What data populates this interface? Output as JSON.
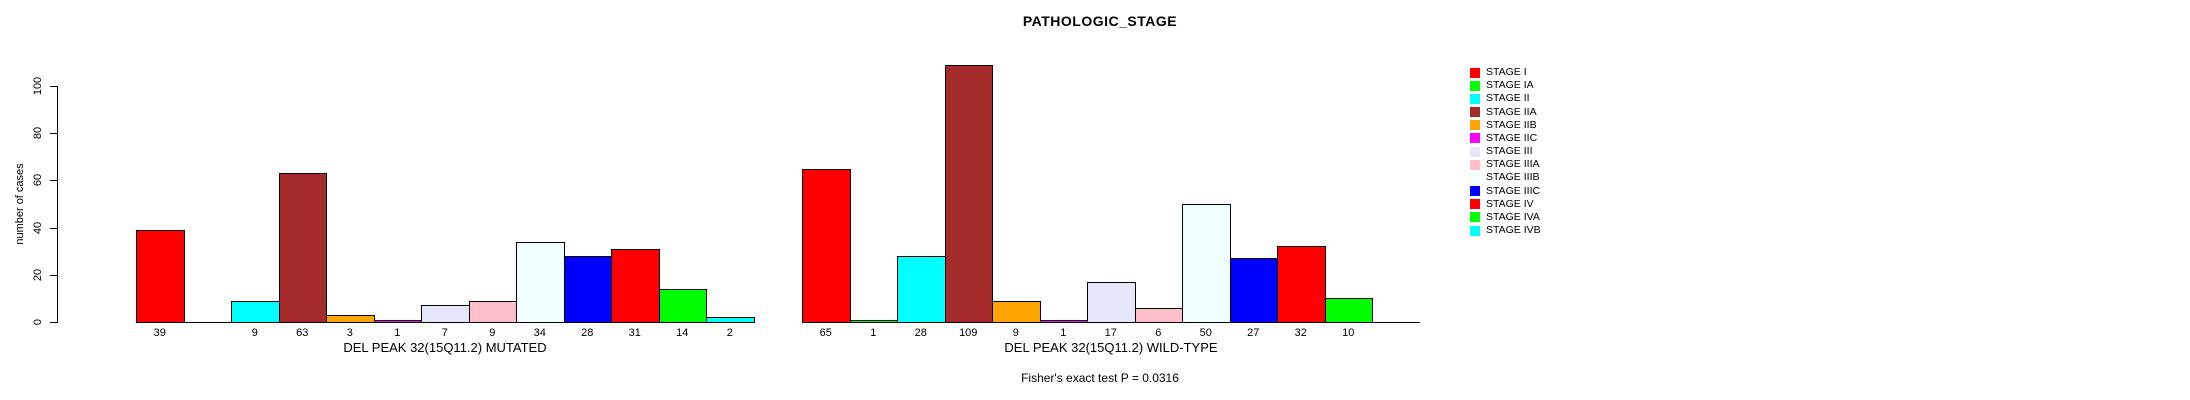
{
  "chart_data": {
    "type": "bar",
    "title": "PATHOLOGIC_STAGE",
    "ylabel": "number of cases",
    "xlabel": "",
    "ylim": [
      0,
      100
    ],
    "yticks": [
      0,
      20,
      40,
      60,
      80,
      100
    ],
    "grid": false,
    "legend_position": "right",
    "categories": [
      "STAGE I",
      "STAGE IA",
      "STAGE II",
      "STAGE IIA",
      "STAGE IIB",
      "STAGE IIC",
      "STAGE III",
      "STAGE IIIA",
      "STAGE IIIB",
      "STAGE IIIC",
      "STAGE IV",
      "STAGE IVA",
      "STAGE IVB"
    ],
    "colors": [
      "#FF0000",
      "#00FF00",
      "#00FFFF",
      "#A52A2A",
      "#FFA500",
      "#FF00FF",
      "#E6E6FA",
      "#FFC0CB",
      "#F0FFFF",
      "#0000FF",
      "#FF0000",
      "#00FF00",
      "#00FFFF"
    ],
    "series": [
      {
        "name": "DEL PEAK 32(15Q11.2) MUTATED",
        "values": [
          39,
          0,
          9,
          63,
          3,
          1,
          7,
          9,
          34,
          28,
          31,
          14,
          2
        ]
      },
      {
        "name": "DEL PEAK 32(15Q11.2) WILD-TYPE",
        "values": [
          65,
          1,
          28,
          109,
          9,
          1,
          17,
          6,
          50,
          27,
          32,
          10,
          0
        ]
      }
    ],
    "bar_value_labels_shown": true,
    "zero_value_labels_hidden": true,
    "annotation": "Fisher's exact test P = 0.0316"
  }
}
